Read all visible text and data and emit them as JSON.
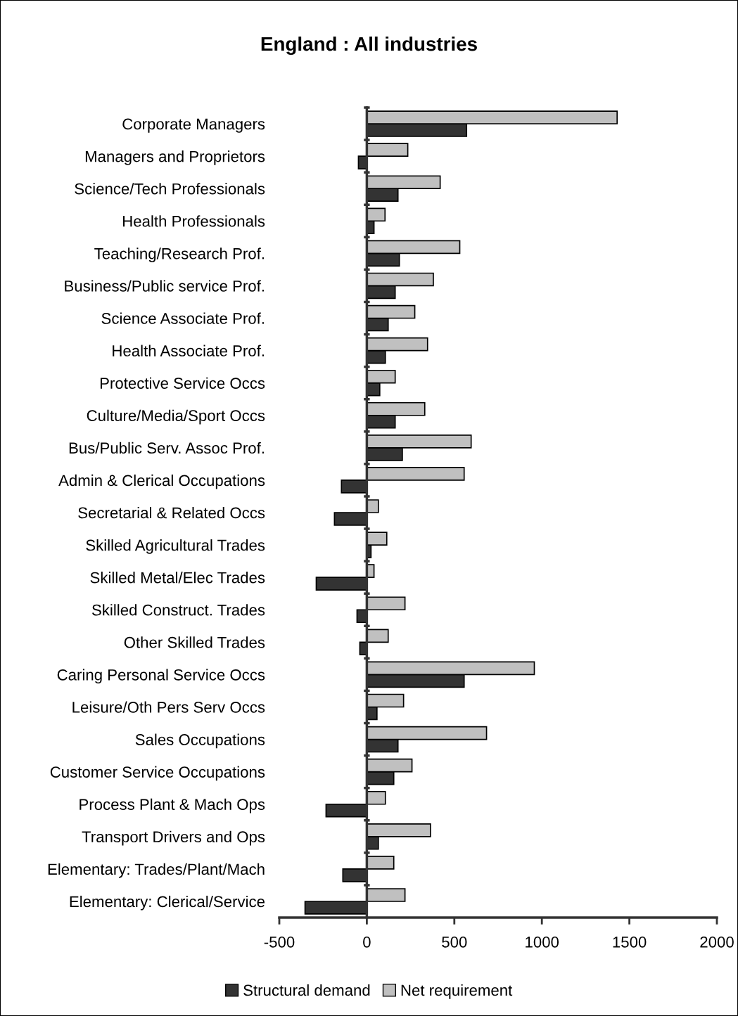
{
  "chart_data": {
    "type": "bar",
    "orientation": "horizontal",
    "title": "England : All industries",
    "categories": [
      "Corporate Managers",
      "Managers and Proprietors",
      "Science/Tech Professionals",
      "Health Professionals",
      "Teaching/Research Prof.",
      "Business/Public service Prof.",
      "Science Associate Prof.",
      "Health Associate Prof.",
      "Protective Service Occs",
      "Culture/Media/Sport Occs",
      "Bus/Public Serv. Assoc Prof.",
      "Admin & Clerical Occupations",
      "Secretarial & Related Occs",
      "Skilled Agricultural Trades",
      "Skilled Metal/Elec Trades",
      "Skilled Construct. Trades",
      "Other Skilled Trades",
      "Caring Personal Service Occs",
      "Leisure/Oth Pers Serv Occs",
      "Sales Occupations",
      "Customer Service Occupations",
      "Process Plant & Mach Ops",
      "Transport Drivers and Ops",
      "Elementary: Trades/Plant/Mach",
      "Elementary: Clerical/Service"
    ],
    "series": [
      {
        "name": "Structural demand",
        "color": "#333333",
        "values": [
          570,
          -48,
          178,
          41,
          186,
          162,
          122,
          106,
          74,
          162,
          203,
          -145,
          -185,
          24,
          -289,
          -56,
          -40,
          556,
          58,
          178,
          154,
          -233,
          66,
          -137,
          -353
        ]
      },
      {
        "name": "Net requirement",
        "color": "#c0c0c0",
        "values": [
          1430,
          234,
          419,
          104,
          531,
          380,
          274,
          347,
          162,
          331,
          596,
          556,
          66,
          114,
          41,
          218,
          122,
          957,
          210,
          684,
          258,
          106,
          364,
          154,
          218
        ]
      }
    ],
    "xlim": [
      -500,
      2000
    ],
    "xticks": [
      -500,
      0,
      500,
      1000,
      1500,
      2000
    ],
    "legend": "bottom"
  }
}
